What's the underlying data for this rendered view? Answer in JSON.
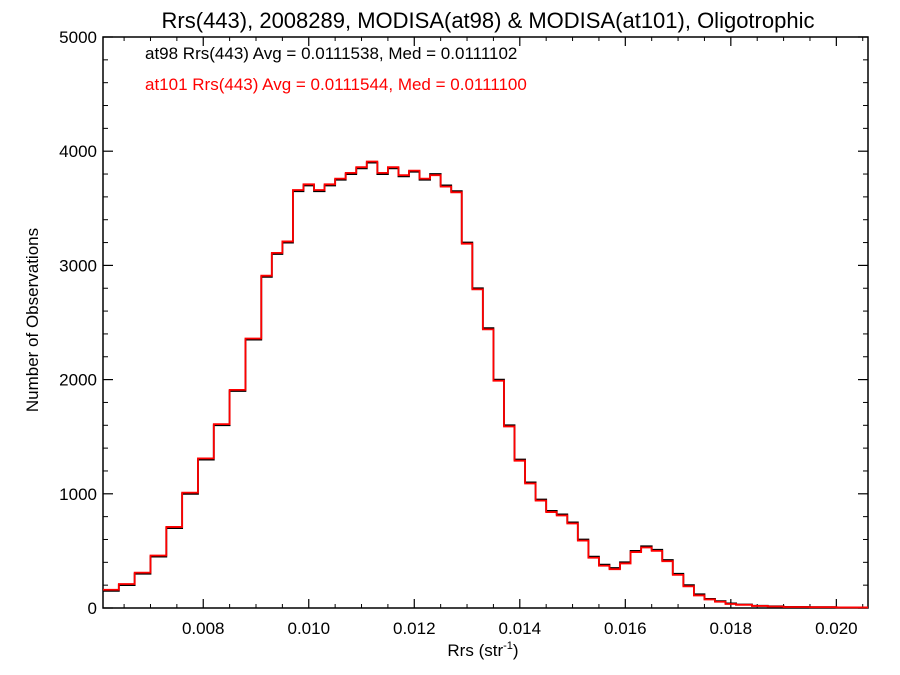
{
  "chart_data": {
    "type": "line",
    "step": true,
    "title": "Rrs(443), 2008289, MODISA(at98) & MODISA(at101), Oligotrophic",
    "xlabel_main": "Rrs (str",
    "xlabel_sup": "-1",
    "xlabel_close": ")",
    "ylabel": "Number of Observations",
    "xlim": [
      0.0061,
      0.0206
    ],
    "ylim": [
      0,
      5000
    ],
    "x_ticks": [
      0.008,
      0.01,
      0.012,
      0.014,
      0.016,
      0.018,
      0.02
    ],
    "x_tick_labels": [
      "0.008",
      "0.010",
      "0.012",
      "0.014",
      "0.016",
      "0.018",
      "0.020"
    ],
    "y_ticks": [
      0,
      1000,
      2000,
      3000,
      4000,
      5000
    ],
    "y_tick_labels": [
      "0",
      "1000",
      "2000",
      "3000",
      "4000",
      "5000"
    ],
    "grid": false,
    "annotations": [
      {
        "text": "at98 Rrs(443) Avg = 0.0111538, Med = 0.0111102",
        "color": "#000000"
      },
      {
        "text": "at101 Rrs(443) Avg = 0.0111544, Med = 0.0111100",
        "color": "#ff0000"
      }
    ],
    "series": [
      {
        "color": "#000000",
        "x": [
          0.0061,
          0.0064,
          0.0067,
          0.007,
          0.0073,
          0.0076,
          0.0079,
          0.0082,
          0.0085,
          0.0088,
          0.0091,
          0.0093,
          0.0095,
          0.0097,
          0.0099,
          0.0101,
          0.0103,
          0.0105,
          0.0107,
          0.0109,
          0.0111,
          0.0113,
          0.0115,
          0.0117,
          0.0119,
          0.0121,
          0.0123,
          0.0125,
          0.0127,
          0.0129,
          0.0131,
          0.0133,
          0.0135,
          0.0137,
          0.0139,
          0.0141,
          0.0143,
          0.0145,
          0.0147,
          0.0149,
          0.0151,
          0.0153,
          0.0155,
          0.0157,
          0.0159,
          0.0161,
          0.0163,
          0.0165,
          0.0167,
          0.0169,
          0.0171,
          0.0173,
          0.0175,
          0.0177,
          0.0179,
          0.0181,
          0.0184,
          0.0187,
          0.019,
          0.0195,
          0.02,
          0.0206
        ],
        "y": [
          150,
          200,
          300,
          450,
          700,
          1000,
          1300,
          1600,
          1900,
          2350,
          2900,
          3100,
          3200,
          3650,
          3700,
          3650,
          3700,
          3750,
          3800,
          3850,
          3900,
          3800,
          3850,
          3780,
          3820,
          3750,
          3800,
          3700,
          3650,
          3200,
          2800,
          2450,
          2000,
          1600,
          1300,
          1100,
          950,
          850,
          820,
          750,
          600,
          450,
          380,
          350,
          400,
          500,
          540,
          510,
          420,
          300,
          200,
          120,
          80,
          60,
          40,
          30,
          20,
          15,
          10,
          8,
          5,
          5
        ]
      },
      {
        "color": "#ff0000",
        "x": [
          0.0061,
          0.0064,
          0.0067,
          0.007,
          0.0073,
          0.0076,
          0.0079,
          0.0082,
          0.0085,
          0.0088,
          0.0091,
          0.0093,
          0.0095,
          0.0097,
          0.0099,
          0.0101,
          0.0103,
          0.0105,
          0.0107,
          0.0109,
          0.0111,
          0.0113,
          0.0115,
          0.0117,
          0.0119,
          0.0121,
          0.0123,
          0.0125,
          0.0127,
          0.0129,
          0.0131,
          0.0133,
          0.0135,
          0.0137,
          0.0139,
          0.0141,
          0.0143,
          0.0145,
          0.0147,
          0.0149,
          0.0151,
          0.0153,
          0.0155,
          0.0157,
          0.0159,
          0.0161,
          0.0163,
          0.0165,
          0.0167,
          0.0169,
          0.0171,
          0.0173,
          0.0175,
          0.0177,
          0.0179,
          0.0181,
          0.0184,
          0.0187,
          0.019,
          0.0195,
          0.02,
          0.0206
        ],
        "y": [
          160,
          210,
          310,
          460,
          710,
          1010,
          1310,
          1610,
          1910,
          2360,
          2910,
          3110,
          3210,
          3660,
          3710,
          3660,
          3710,
          3760,
          3810,
          3860,
          3910,
          3810,
          3860,
          3790,
          3830,
          3760,
          3790,
          3690,
          3640,
          3190,
          2790,
          2440,
          1990,
          1590,
          1290,
          1090,
          940,
          840,
          810,
          740,
          590,
          440,
          370,
          340,
          390,
          490,
          530,
          500,
          410,
          290,
          190,
          110,
          75,
          55,
          35,
          28,
          18,
          13,
          9,
          7,
          5,
          5
        ]
      }
    ]
  }
}
